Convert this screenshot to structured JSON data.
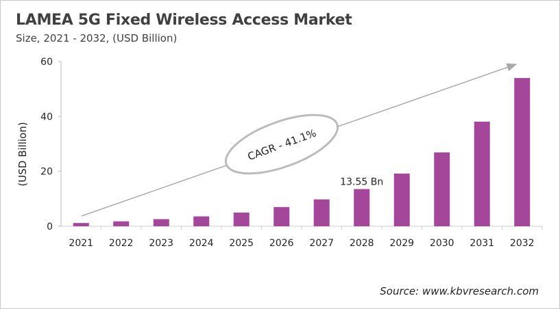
{
  "chart_data": {
    "type": "bar",
    "title": "LAMEA 5G Fixed Wireless Access Market",
    "subtitle": "Size, 2021 - 2032, (USD Billion)",
    "xlabel": "",
    "ylabel": "(USD Billion)",
    "ylim": [
      0,
      60
    ],
    "yticks": [
      0,
      20,
      40,
      60
    ],
    "grid": false,
    "categories": [
      "2021",
      "2022",
      "2023",
      "2024",
      "2025",
      "2026",
      "2027",
      "2028",
      "2029",
      "2030",
      "2031",
      "2032"
    ],
    "values": [
      1.2,
      1.8,
      2.6,
      3.6,
      5.0,
      7.0,
      9.8,
      13.55,
      19.2,
      26.9,
      38.1,
      54.0
    ],
    "bar_color": "#a4479a",
    "annotations": {
      "data_label": {
        "category": "2028",
        "text": "13.55 Bn"
      },
      "cagr": "CAGR - 41.1%"
    },
    "source": "Source: www.kbvresearch.com"
  }
}
